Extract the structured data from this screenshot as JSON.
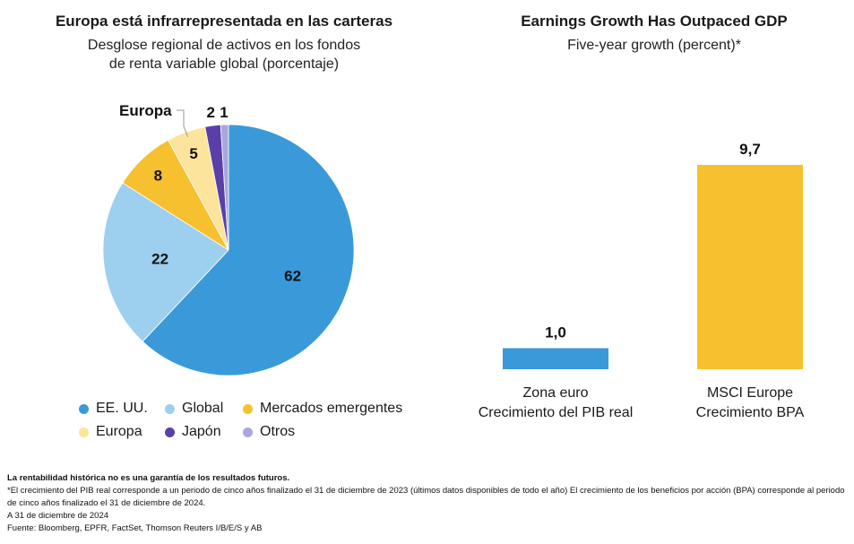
{
  "pie_chart": {
    "title": "Europa está infrarrepresentada en las carteras",
    "subtitle_line1": "Desglose regional de activos en los fondos",
    "subtitle_line2": "de renta variable global (porcentaje)"
  },
  "bar_chart": {
    "title": "Earnings Growth Has Outpaced GDP",
    "subtitle": "Five-year growth (percent)*"
  },
  "notes": {
    "disclaimer": "La rentabilidad histórica no es una garantía de los resultados futuros.",
    "footnote": "*El crecimiento del PIB real corresponde a un periodo de cinco años finalizado el 31 de diciembre de 2023 (últimos datos disponibles de todo el año) El crecimiento de los beneficios por acción (BPA) corresponde al periodo de cinco años finalizado el 31 de diciembre de 2024.",
    "date": "A 31 de diciembre de 2024",
    "source": "Fuente: Bloomberg, EPFR, FactSet, Thomson Reuters I/B/E/S y AB"
  },
  "chart_data": [
    {
      "type": "pie",
      "title": "Europa está infrarrepresentada en las carteras",
      "subtitle": "Desglose regional de activos en los fondos de renta variable global (porcentaje)",
      "slices": [
        {
          "label": "EE. UU.",
          "value": 62,
          "value_label": "62",
          "color": "#3a9ad9"
        },
        {
          "label": "Global",
          "value": 22,
          "value_label": "22",
          "color": "#9dcfee"
        },
        {
          "label": "Mercados emergentes",
          "value": 8,
          "value_label": "8",
          "color": "#f7c02e"
        },
        {
          "label": "Europa",
          "value": 5,
          "value_label": "5",
          "color": "#fde49d",
          "callout": "Europa"
        },
        {
          "label": "Japón",
          "value": 2,
          "value_label": "2",
          "color": "#5b3fa8"
        },
        {
          "label": "Otros",
          "value": 1,
          "value_label": "1",
          "color": "#a9a8dc"
        }
      ],
      "legend_placement": "bottom"
    },
    {
      "type": "bar",
      "title": "Earnings Growth Has Outpaced GDP",
      "subtitle": "Five-year growth (percent)*",
      "categories": [
        {
          "line1": "Zona euro",
          "line2": "Crecimiento del PIB real"
        },
        {
          "line1": "MSCI Europe",
          "line2": "Crecimiento BPA"
        }
      ],
      "values": [
        1.0,
        9.7
      ],
      "value_labels": [
        "1,0",
        "9,7"
      ],
      "colors": [
        "#3a9ad9",
        "#f7c02e"
      ],
      "ylim": [
        0,
        9.7
      ],
      "grid": false
    }
  ]
}
